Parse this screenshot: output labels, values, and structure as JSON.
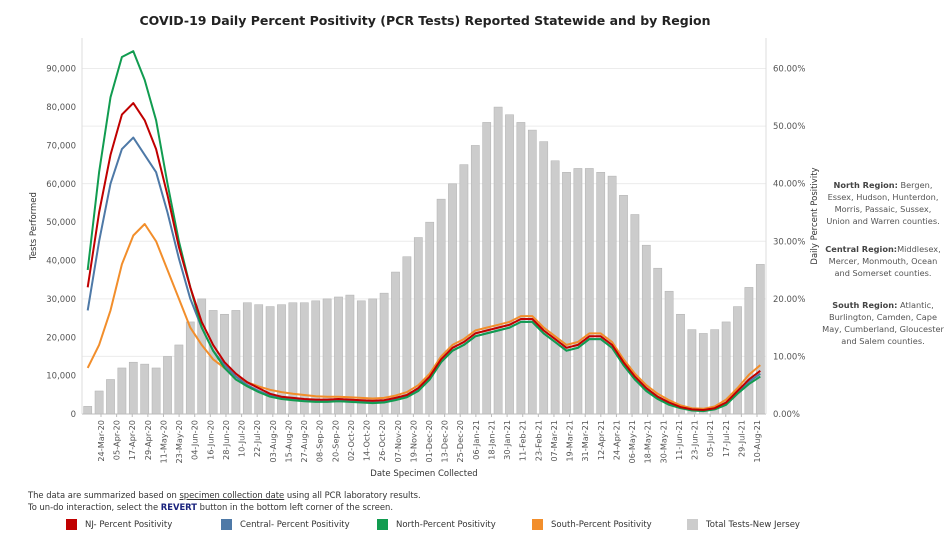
{
  "chart_data": {
    "type": "bar+line (dual axis)",
    "title": "COVID-19 Daily Percent Positivity (PCR Tests) Reported Statewide and by Region",
    "xlabel": "Date Specimen Collected",
    "ylabel_left": "Tests Performed",
    "ylabel_right": "Daily Percent Positivity",
    "left_axis": {
      "ticks": [
        0,
        10000,
        20000,
        30000,
        40000,
        50000,
        60000,
        70000,
        80000,
        90000
      ],
      "tick_labels": [
        "0",
        "10,000",
        "20,000",
        "30,000",
        "40,000",
        "50,000",
        "60,000",
        "70,000",
        "80,000",
        "90,000"
      ],
      "ylim": [
        0,
        98000
      ]
    },
    "right_axis": {
      "ticks": [
        0,
        10,
        20,
        30,
        40,
        50,
        60
      ],
      "tick_labels": [
        "0.00%",
        "10.00%",
        "20.00%",
        "30.00%",
        "40.00%",
        "50.00%",
        "60.00%"
      ],
      "ylim": [
        0,
        65.3
      ]
    },
    "x_tick_labels": [
      "24-Mar-20",
      "05-Apr-20",
      "17-Apr-20",
      "29-Apr-20",
      "11-May-20",
      "23-May-20",
      "04-Jun-20",
      "16-Jun-20",
      "28-Jun-20",
      "10-Jul-20",
      "22-Jul-20",
      "03-Aug-20",
      "15-Aug-20",
      "27-Aug-20",
      "08-Sep-20",
      "20-Sep-20",
      "02-Oct-20",
      "14-Oct-20",
      "26-Oct-20",
      "07-Nov-20",
      "19-Nov-20",
      "01-Dec-20",
      "13-Dec-20",
      "25-Dec-20",
      "06-Jan-21",
      "18-Jan-21",
      "30-Jan-21",
      "11-Feb-21",
      "23-Feb-21",
      "07-Mar-21",
      "19-Mar-21",
      "31-Mar-21",
      "12-Apr-21",
      "24-Apr-21",
      "06-May-21",
      "18-May-21",
      "30-May-21",
      "11-Jun-21",
      "23-Jun-21",
      "05-Jul-21",
      "17-Jul-21",
      "29-Jul-21",
      "10-Aug-21"
    ],
    "grid": true,
    "legend_placement": "bottom",
    "series": [
      {
        "name": "NJ- Percent Positivity",
        "axis": "right",
        "color": "#c00000",
        "values": [
          22,
          35,
          45,
          52,
          54,
          51,
          46,
          38,
          29,
          22,
          16,
          12,
          9,
          7,
          5.5,
          4.5,
          3.5,
          3,
          2.8,
          2.6,
          2.5,
          2.5,
          2.6,
          2.5,
          2.4,
          2.3,
          2.4,
          2.8,
          3.3,
          4.5,
          6.5,
          9.5,
          11.5,
          12.5,
          14,
          14.5,
          15,
          15.5,
          16.5,
          16.5,
          14.5,
          13,
          11.5,
          12,
          13.5,
          13.5,
          12,
          9,
          6.5,
          4.5,
          3,
          2,
          1.2,
          0.8,
          0.7,
          1,
          2,
          4,
          6,
          7.5
        ]
      },
      {
        "name": "Central- Percent Positivity",
        "axis": "right",
        "color": "#4e79a7",
        "values": [
          18,
          30,
          40,
          46,
          48,
          45,
          42,
          35,
          27,
          20,
          15,
          11,
          8.5,
          6.5,
          5,
          4,
          3.2,
          2.8,
          2.6,
          2.4,
          2.3,
          2.3,
          2.4,
          2.3,
          2.2,
          2.1,
          2.2,
          2.6,
          3,
          4.2,
          6,
          9,
          11,
          12,
          13.5,
          14,
          14.5,
          15,
          16,
          16,
          14,
          12.5,
          11,
          11.5,
          13,
          13,
          11.5,
          8.5,
          6,
          4.2,
          2.8,
          1.8,
          1.1,
          0.7,
          0.6,
          0.9,
          1.8,
          3.8,
          5.6,
          7
        ]
      },
      {
        "name": "North-Percent Positivity",
        "axis": "right",
        "color": "#119c50",
        "values": [
          25,
          42,
          55,
          62,
          63,
          58,
          51,
          40,
          30,
          22,
          15,
          11,
          8,
          6,
          4.8,
          3.8,
          3,
          2.6,
          2.4,
          2.2,
          2.1,
          2.1,
          2.2,
          2.1,
          2,
          1.9,
          2,
          2.4,
          2.9,
          4,
          6,
          9,
          11,
          12,
          13.5,
          14,
          14.5,
          15,
          16,
          16,
          14,
          12.5,
          11,
          11.5,
          13,
          13,
          11.5,
          8.5,
          6,
          4,
          2.6,
          1.6,
          1,
          0.6,
          0.5,
          0.8,
          1.6,
          3.5,
          5.2,
          6.5
        ]
      },
      {
        "name": "South-Percent Positivity",
        "axis": "right",
        "color": "#f28e2b",
        "values": [
          8,
          12,
          18,
          26,
          31,
          33,
          30,
          25,
          20,
          15,
          12,
          9.5,
          8,
          6.5,
          5.5,
          4.8,
          4.2,
          3.8,
          3.5,
          3.3,
          3.1,
          3,
          3,
          2.9,
          2.8,
          2.7,
          2.8,
          3.2,
          3.8,
          5,
          7,
          10,
          12,
          13,
          14.5,
          15,
          15.5,
          16,
          17,
          17,
          15,
          13.5,
          12,
          12.5,
          14,
          14,
          12.5,
          9.5,
          7,
          5,
          3.5,
          2.4,
          1.5,
          1,
          0.9,
          1.3,
          2.5,
          4.5,
          6.8,
          8.5
        ]
      },
      {
        "name": "Total Tests-New Jersey",
        "axis": "left",
        "color": "#cccccc",
        "values": [
          2000,
          6000,
          9000,
          12000,
          13500,
          13000,
          12000,
          15000,
          18000,
          24000,
          30000,
          27000,
          26000,
          27000,
          29000,
          28500,
          28000,
          28500,
          29000,
          29000,
          29500,
          30000,
          30500,
          31000,
          29500,
          30000,
          31500,
          37000,
          41000,
          46000,
          50000,
          56000,
          60000,
          65000,
          70000,
          76000,
          80000,
          78000,
          76000,
          74000,
          71000,
          66000,
          63000,
          64000,
          64000,
          63000,
          62000,
          57000,
          52000,
          44000,
          38000,
          32000,
          26000,
          22000,
          21000,
          22000,
          24000,
          28000,
          33000,
          39000
        ]
      }
    ]
  },
  "region_notes": {
    "north": {
      "label": "North Region:",
      "text": " Bergen, Essex, Hudson, Hunterdon, Morris, Passaic, Sussex, Union and Warren counties."
    },
    "central": {
      "label": "Central Region:",
      "text": "Middlesex, Mercer, Monmouth, Ocean and Somerset counties."
    },
    "south": {
      "label": "South Region:",
      "text": " Atlantic, Burlington, Camden, Cape May, Cumberland, Gloucester and Salem counties."
    }
  },
  "notes": {
    "line1_pre": "The data are summarized based on ",
    "line1_link": "specimen collection date",
    "line1_post": " using all PCR laboratory results.",
    "line2_pre": "To un-do interaction, select the ",
    "line2_revert": "REVERT",
    "line2_post": " button in the bottom left corner of the screen."
  },
  "legend": [
    {
      "label": "NJ- Percent Positivity",
      "color": "#c00000"
    },
    {
      "label": "Central- Percent Positivity",
      "color": "#4e79a7"
    },
    {
      "label": "North-Percent Positivity",
      "color": "#119c50"
    },
    {
      "label": "South-Percent Positivity",
      "color": "#f28e2b"
    },
    {
      "label": "Total Tests-New Jersey",
      "color": "#cccccc"
    }
  ]
}
